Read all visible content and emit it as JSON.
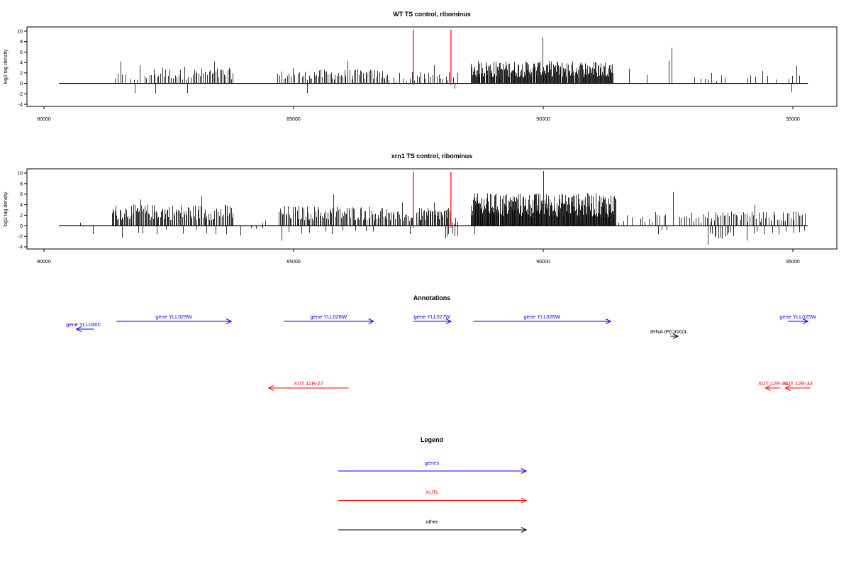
{
  "colors": {
    "gene": "#0000ff",
    "xut": "#ff0000",
    "other": "#000000",
    "marker": "#ff3b3b",
    "bars": "#000000"
  },
  "chart_data": [
    {
      "type": "bar",
      "title": "WT TS control, ribominus",
      "ylabel": "log2 tag density",
      "xlim": [
        80000,
        95700
      ],
      "ylim": [
        -4,
        10
      ],
      "yticks": [
        -4,
        -2,
        0,
        2,
        4,
        6,
        8,
        10
      ],
      "xticks": [
        80000,
        85000,
        90000,
        95000
      ],
      "baseline_range": [
        80300,
        95300
      ],
      "markers": [
        87400,
        88150
      ],
      "positive_clusters": [
        {
          "range": [
            81400,
            81650
          ],
          "n": 5,
          "mean": 1.4,
          "max": 4.2
        },
        {
          "range": [
            81700,
            82100
          ],
          "n": 6,
          "mean": 1.2,
          "max": 3.5
        },
        {
          "range": [
            82100,
            82600
          ],
          "n": 14,
          "mean": 2.2,
          "max": 3.0
        },
        {
          "range": [
            82600,
            83000
          ],
          "n": 10,
          "mean": 2.0,
          "max": 3.2
        },
        {
          "range": [
            83000,
            83800
          ],
          "n": 28,
          "mean": 2.2,
          "max": 4.2
        },
        {
          "range": [
            84650,
            85300
          ],
          "n": 16,
          "mean": 1.8,
          "max": 3.0
        },
        {
          "range": [
            85300,
            86900
          ],
          "n": 55,
          "mean": 2.0,
          "max": 4.3
        },
        {
          "range": [
            86900,
            87300
          ],
          "n": 6,
          "mean": 0.9,
          "max": 2.0
        },
        {
          "range": [
            87300,
            87450
          ],
          "n": 3,
          "mean": 1.2,
          "max": 2.2
        },
        {
          "range": [
            87450,
            88150
          ],
          "n": 16,
          "mean": 1.6,
          "max": 3.5
        },
        {
          "range": [
            88150,
            88300
          ],
          "n": 2,
          "mean": 1.2,
          "max": 2.0
        },
        {
          "range": [
            88550,
            91400
          ],
          "n": 240,
          "mean": 3.2,
          "max": 8.8
        },
        {
          "range": [
            91700,
            91750
          ],
          "n": 1,
          "mean": 2.8,
          "max": 2.8
        },
        {
          "range": [
            92050,
            92100
          ],
          "n": 1,
          "mean": 1.6,
          "max": 1.6
        },
        {
          "range": [
            92500,
            92600
          ],
          "n": 2,
          "mean": 3.5,
          "max": 6.8
        },
        {
          "range": [
            93000,
            93700
          ],
          "n": 8,
          "mean": 1.2,
          "max": 2.0
        },
        {
          "range": [
            94000,
            94700
          ],
          "n": 6,
          "mean": 1.4,
          "max": 2.4
        },
        {
          "range": [
            94900,
            95150
          ],
          "n": 4,
          "mean": 2.2,
          "max": 3.4
        }
      ],
      "negative_clusters": [
        {
          "range": [
            81800,
            81850
          ],
          "n": 1,
          "mean": -1.9,
          "min": -1.9
        },
        {
          "range": [
            82200,
            82250
          ],
          "n": 1,
          "mean": -1.9,
          "min": -1.9
        },
        {
          "range": [
            82850,
            82900
          ],
          "n": 1,
          "mean": -1.9,
          "min": -1.9
        },
        {
          "range": [
            85250,
            85300
          ],
          "n": 1,
          "mean": -1.9,
          "min": -1.9
        },
        {
          "range": [
            88200,
            88260
          ],
          "n": 1,
          "mean": -1.0,
          "min": -1.0
        },
        {
          "range": [
            94950,
            95000
          ],
          "n": 1,
          "mean": -1.7,
          "min": -1.7
        }
      ]
    },
    {
      "type": "bar",
      "title": "xrn1 TS control, ribominus",
      "ylabel": "log2 tag density",
      "xlim": [
        80000,
        95700
      ],
      "ylim": [
        -4,
        10
      ],
      "yticks": [
        -4,
        -2,
        0,
        2,
        4,
        6,
        8,
        10
      ],
      "xticks": [
        80000,
        85000,
        90000,
        95000
      ],
      "baseline_range": [
        80300,
        95300
      ],
      "markers": [
        87400,
        88150
      ],
      "positive_clusters": [
        {
          "range": [
            80700,
            80750
          ],
          "n": 1,
          "mean": 0.6,
          "max": 0.6
        },
        {
          "range": [
            81350,
            82500
          ],
          "n": 60,
          "mean": 3.0,
          "max": 5.0
        },
        {
          "range": [
            82500,
            83800
          ],
          "n": 60,
          "mean": 3.0,
          "max": 5.6
        },
        {
          "range": [
            84350,
            84450
          ],
          "n": 2,
          "mean": 0.8,
          "max": 1.0
        },
        {
          "range": [
            84700,
            86900
          ],
          "n": 100,
          "mean": 2.8,
          "max": 6.0
        },
        {
          "range": [
            86900,
            87400
          ],
          "n": 20,
          "mean": 2.0,
          "max": 4.4
        },
        {
          "range": [
            87450,
            88150
          ],
          "n": 40,
          "mean": 2.5,
          "max": 4.4
        },
        {
          "range": [
            88150,
            88300
          ],
          "n": 4,
          "mean": 1.0,
          "max": 1.5
        },
        {
          "range": [
            88550,
            91450
          ],
          "n": 300,
          "mean": 4.6,
          "max": 10.4
        },
        {
          "range": [
            91500,
            91800
          ],
          "n": 4,
          "mean": 1.2,
          "max": 2.0
        },
        {
          "range": [
            91900,
            92500
          ],
          "n": 10,
          "mean": 1.6,
          "max": 2.6
        },
        {
          "range": [
            92550,
            92650
          ],
          "n": 1,
          "mean": 6.4,
          "max": 6.4
        },
        {
          "range": [
            92700,
            93200
          ],
          "n": 10,
          "mean": 1.4,
          "max": 2.5
        },
        {
          "range": [
            93200,
            95250
          ],
          "n": 60,
          "mean": 2.0,
          "max": 4.0
        }
      ],
      "negative_clusters": [
        {
          "range": [
            80950,
            81000
          ],
          "n": 1,
          "mean": -1.6,
          "min": -1.6
        },
        {
          "range": [
            81500,
            83800
          ],
          "n": 10,
          "mean": -1.2,
          "min": -2.2
        },
        {
          "range": [
            83900,
            84450
          ],
          "n": 4,
          "mean": -0.7,
          "min": -1.8
        },
        {
          "range": [
            84600,
            86800
          ],
          "n": 10,
          "mean": -1.2,
          "min": -2.8
        },
        {
          "range": [
            87300,
            87350
          ],
          "n": 1,
          "mean": -1.6,
          "min": -1.6
        },
        {
          "range": [
            88000,
            88300
          ],
          "n": 6,
          "mean": -1.6,
          "min": -2.4
        },
        {
          "range": [
            88600,
            88650
          ],
          "n": 1,
          "mean": -1.6,
          "min": -1.6
        },
        {
          "range": [
            92300,
            92500
          ],
          "n": 3,
          "mean": -1.2,
          "min": -1.6
        },
        {
          "range": [
            93300,
            93850
          ],
          "n": 14,
          "mean": -1.8,
          "min": -3.6
        },
        {
          "range": [
            94000,
            95300
          ],
          "n": 10,
          "mean": -1.2,
          "min": -2.8
        }
      ]
    },
    {
      "type": "table",
      "title": "Annotations",
      "features": [
        {
          "label": "gene YLL030C",
          "kind": "gene",
          "strand": "-",
          "start": 80650,
          "end": 81000
        },
        {
          "label": "gene YLL029W",
          "kind": "gene",
          "strand": "+",
          "start": 81450,
          "end": 83750
        },
        {
          "label": "gene YLL028W",
          "kind": "gene",
          "strand": "+",
          "start": 84800,
          "end": 86600
        },
        {
          "label": "gene YLL027W",
          "kind": "gene",
          "strand": "+",
          "start": 87400,
          "end": 88150
        },
        {
          "label": "gene YLL026W",
          "kind": "gene",
          "strand": "+",
          "start": 88600,
          "end": 91350
        },
        {
          "label": "tRNA tP(UGG)L",
          "kind": "other",
          "strand": "+",
          "start": 92550,
          "end": 92700
        },
        {
          "label": "gene YLL025W",
          "kind": "gene",
          "strand": "+",
          "start": 94900,
          "end": 95300
        },
        {
          "label": "XUT 12R-27",
          "kind": "xut",
          "strand": "-",
          "start": 84500,
          "end": 86100
        },
        {
          "label": "XUT 12R-31",
          "kind": "xut",
          "strand": "-",
          "start": 94450,
          "end": 94750
        },
        {
          "label": "XUT 12R-33",
          "kind": "xut",
          "strand": "-",
          "start": 94850,
          "end": 95350
        }
      ]
    }
  ],
  "legend": {
    "title": "Legend",
    "items": [
      {
        "label": "genes",
        "kind": "gene"
      },
      {
        "label": "XUTs",
        "kind": "xut"
      },
      {
        "label": "other",
        "kind": "other"
      }
    ]
  }
}
